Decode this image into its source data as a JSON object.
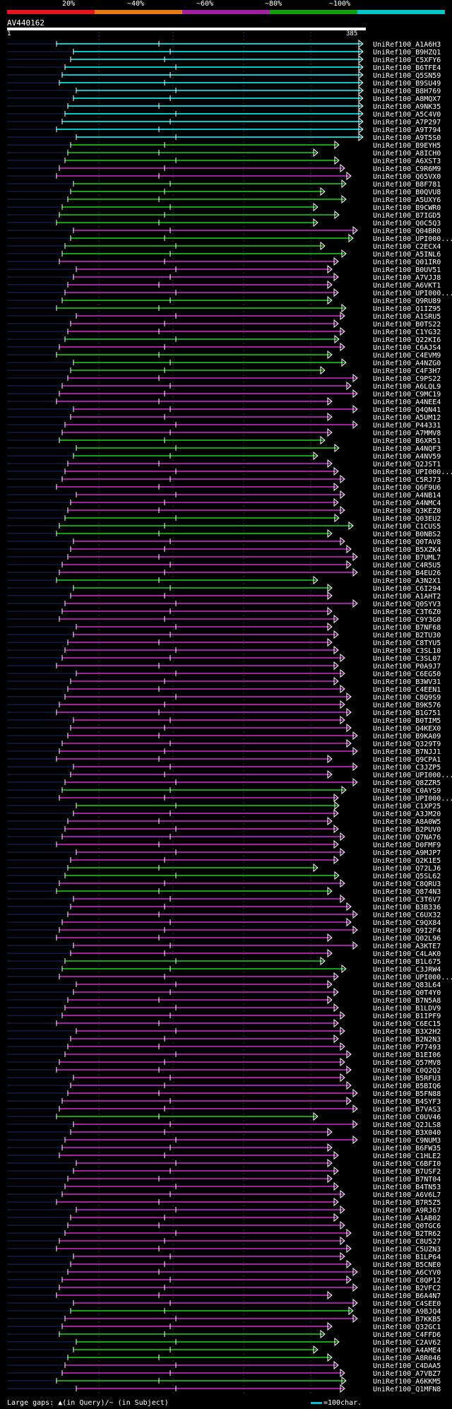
{
  "header": {
    "scale_labels": [
      "20%",
      "~40%",
      "~60%",
      "~80%",
      "~100%"
    ],
    "colors": [
      "#e8141e",
      "#e87a14",
      "#a020a0",
      "#10a010",
      "#00c8c8"
    ],
    "query_id": "AV440162",
    "query_start": "1",
    "query_end": "385"
  },
  "footer": {
    "legend_text": "Large gaps: ▲(in Query)/~ (in Subject)",
    "scale_text": "=100char."
  },
  "chart_data": {
    "type": "alignment-map",
    "query_length": 385,
    "hits": [
      {
        "id": "UniRef100_A1A6H3",
        "color": "#00c8c8"
      },
      {
        "id": "UniRef100_B9HZQ1",
        "color": "#00c8c8"
      },
      {
        "id": "UniRef100_C5XFY6",
        "color": "#00c8c8"
      },
      {
        "id": "UniRef100_B6TFE4",
        "color": "#00c8c8"
      },
      {
        "id": "UniRef100_Q5SN59",
        "color": "#00c8c8"
      },
      {
        "id": "UniRef100_B9SU49",
        "color": "#00c8c8"
      },
      {
        "id": "UniRef100_B8H769",
        "color": "#00c8c8"
      },
      {
        "id": "UniRef100_A8MQX7",
        "color": "#00c8c8"
      },
      {
        "id": "UniRef100_A9NK35",
        "color": "#00c8c8"
      },
      {
        "id": "UniRef100_A5C4V0",
        "color": "#00c8c8"
      },
      {
        "id": "UniRef100_A7P297",
        "color": "#00c8c8"
      },
      {
        "id": "UniRef100_A9T794",
        "color": "#00c8c8"
      },
      {
        "id": "UniRef100_A9T5S0",
        "color": "#00c8c8"
      },
      {
        "id": "UniRef100_B9EYH5",
        "color": "#10a010"
      },
      {
        "id": "UniRef100_A8ICH0",
        "color": "#10a010"
      },
      {
        "id": "UniRef100_A6XST3",
        "color": "#10a010"
      },
      {
        "id": "UniRef100_C9R6M9",
        "color": "#a020a0"
      },
      {
        "id": "UniRef100_Q65VX0",
        "color": "#a020a0"
      },
      {
        "id": "UniRef100_B8F781",
        "color": "#10a010"
      },
      {
        "id": "UniRef100_B0QVU8",
        "color": "#10a010"
      },
      {
        "id": "UniRef100_A5UXY6",
        "color": "#10a010"
      },
      {
        "id": "UniRef100_B9CWR0",
        "color": "#10a010"
      },
      {
        "id": "UniRef100_B7IGD5",
        "color": "#10a010"
      },
      {
        "id": "UniRef100_Q0C5Q3",
        "color": "#10a010"
      },
      {
        "id": "UniRef100_Q04BR0",
        "color": "#a020a0"
      },
      {
        "id": "UniRef100_UPI000...",
        "color": "#10a010"
      },
      {
        "id": "UniRef100_C2ECX4",
        "color": "#10a010"
      },
      {
        "id": "UniRef100_A5INL6",
        "color": "#10a010"
      },
      {
        "id": "UniRef100_Q01IR0",
        "color": "#a020a0"
      },
      {
        "id": "UniRef100_B0UV51",
        "color": "#a020a0"
      },
      {
        "id": "UniRef100_A7VJJ8",
        "color": "#a020a0"
      },
      {
        "id": "UniRef100_A6VKT1",
        "color": "#a020a0"
      },
      {
        "id": "UniRef100_UPI000...",
        "color": "#a020a0"
      },
      {
        "id": "UniRef100_Q9RU89",
        "color": "#10a010"
      },
      {
        "id": "UniRef100_Q1IZ95",
        "color": "#10a010"
      },
      {
        "id": "UniRef100_A1SRU5",
        "color": "#a020a0"
      },
      {
        "id": "UniRef100_B0TS22",
        "color": "#a020a0"
      },
      {
        "id": "UniRef100_C1YG32",
        "color": "#a020a0"
      },
      {
        "id": "UniRef100_Q22KI6",
        "color": "#10a010"
      },
      {
        "id": "UniRef100_C6AJS4",
        "color": "#a020a0"
      },
      {
        "id": "UniRef100_C4EVM9",
        "color": "#10a010"
      },
      {
        "id": "UniRef100_A4NZG0",
        "color": "#10a010"
      },
      {
        "id": "UniRef100_C4F3H7",
        "color": "#10a010"
      },
      {
        "id": "UniRef100_C9PS22",
        "color": "#a020a0"
      },
      {
        "id": "UniRef100_A6LQL9",
        "color": "#a020a0"
      },
      {
        "id": "UniRef100_C9MC19",
        "color": "#a020a0"
      },
      {
        "id": "UniRef100_A4NEE4",
        "color": "#a020a0"
      },
      {
        "id": "UniRef100_Q4QN41",
        "color": "#a020a0"
      },
      {
        "id": "UniRef100_A5UM12",
        "color": "#a020a0"
      },
      {
        "id": "UniRef100_P44331",
        "color": "#a020a0"
      },
      {
        "id": "UniRef100_A7MMV8",
        "color": "#a020a0"
      },
      {
        "id": "UniRef100_B6XR51",
        "color": "#10a010"
      },
      {
        "id": "UniRef100_A4NQF3",
        "color": "#10a010"
      },
      {
        "id": "UniRef100_A4NV59",
        "color": "#10a010"
      },
      {
        "id": "UniRef100_Q2JST1",
        "color": "#a020a0"
      },
      {
        "id": "UniRef100_UPI000...",
        "color": "#a020a0"
      },
      {
        "id": "UniRef100_C5RJ73",
        "color": "#a020a0"
      },
      {
        "id": "UniRef100_Q6F9U6",
        "color": "#a020a0"
      },
      {
        "id": "UniRef100_A4NB14",
        "color": "#a020a0"
      },
      {
        "id": "UniRef100_A4NMC4",
        "color": "#a020a0"
      },
      {
        "id": "UniRef100_Q3KEZ0",
        "color": "#a020a0"
      },
      {
        "id": "UniRef100_Q03EU2",
        "color": "#10a010"
      },
      {
        "id": "UniRef100_C1CUS5",
        "color": "#10a010"
      },
      {
        "id": "UniRef100_B0NBS2",
        "color": "#10a010"
      },
      {
        "id": "UniRef100_Q0TAV8",
        "color": "#a020a0"
      },
      {
        "id": "UniRef100_B5XZK4",
        "color": "#a020a0"
      },
      {
        "id": "UniRef100_B7UML7",
        "color": "#a020a0"
      },
      {
        "id": "UniRef100_C4R5U5",
        "color": "#a020a0"
      },
      {
        "id": "UniRef100_B4EU26",
        "color": "#a020a0"
      },
      {
        "id": "UniRef100_A3N2X1",
        "color": "#10a010"
      },
      {
        "id": "UniRef100_C6I294",
        "color": "#10a010"
      },
      {
        "id": "UniRef100_A1AHT2",
        "color": "#a020a0"
      },
      {
        "id": "UniRef100_Q0SYV3",
        "color": "#a020a0"
      },
      {
        "id": "UniRef100_C3T6Z0",
        "color": "#a020a0"
      },
      {
        "id": "UniRef100_C9Y3G0",
        "color": "#a020a0"
      },
      {
        "id": "UniRef100_B7NF68",
        "color": "#a020a0"
      },
      {
        "id": "UniRef100_B2TU30",
        "color": "#a020a0"
      },
      {
        "id": "UniRef100_C8TYU5",
        "color": "#a020a0"
      },
      {
        "id": "UniRef100_C3SL10",
        "color": "#a020a0"
      },
      {
        "id": "UniRef100_C3SL07",
        "color": "#a020a0"
      },
      {
        "id": "UniRef100_P0A9J7",
        "color": "#a020a0"
      },
      {
        "id": "UniRef100_C6EG50",
        "color": "#a020a0"
      },
      {
        "id": "UniRef100_B3WV31",
        "color": "#a020a0"
      },
      {
        "id": "UniRef100_C4EEN1",
        "color": "#a020a0"
      },
      {
        "id": "UniRef100_C8Q9S9",
        "color": "#a020a0"
      },
      {
        "id": "UniRef100_B9K576",
        "color": "#a020a0"
      },
      {
        "id": "UniRef100_B1G751",
        "color": "#a020a0"
      },
      {
        "id": "UniRef100_B0TIM5",
        "color": "#a020a0"
      },
      {
        "id": "UniRef100_Q4KEX0",
        "color": "#a020a0"
      },
      {
        "id": "UniRef100_B9KA09",
        "color": "#a020a0"
      },
      {
        "id": "UniRef100_Q329T9",
        "color": "#a020a0"
      },
      {
        "id": "UniRef100_B7NJJ1",
        "color": "#a020a0"
      },
      {
        "id": "UniRef100_Q9CPA1",
        "color": "#a020a0"
      },
      {
        "id": "UniRef100_C3JZP5",
        "color": "#a020a0"
      },
      {
        "id": "UniRef100_UPI000...",
        "color": "#a020a0"
      },
      {
        "id": "UniRef100_Q8ZZR5",
        "color": "#a020a0"
      },
      {
        "id": "UniRef100_C0AYS9",
        "color": "#10a010"
      },
      {
        "id": "UniRef100_UPI000...",
        "color": "#a020a0"
      },
      {
        "id": "UniRef100_C1XP25",
        "color": "#10a010"
      },
      {
        "id": "UniRef100_A3JM20",
        "color": "#a020a0"
      },
      {
        "id": "UniRef100_A8A0W5",
        "color": "#a020a0"
      },
      {
        "id": "UniRef100_B2PUV0",
        "color": "#a020a0"
      },
      {
        "id": "UniRef100_Q7NA76",
        "color": "#a020a0"
      },
      {
        "id": "UniRef100_D0FMF9",
        "color": "#a020a0"
      },
      {
        "id": "UniRef100_A9MJP7",
        "color": "#a020a0"
      },
      {
        "id": "UniRef100_Q2K1E5",
        "color": "#a020a0"
      },
      {
        "id": "UniRef100_Q72LJ6",
        "color": "#10a010"
      },
      {
        "id": "UniRef100_Q5SL62",
        "color": "#10a010"
      },
      {
        "id": "UniRef100_C8QRU3",
        "color": "#a020a0"
      },
      {
        "id": "UniRef100_Q874N3",
        "color": "#10a010"
      },
      {
        "id": "UniRef100_C3T6V7",
        "color": "#a020a0"
      },
      {
        "id": "UniRef100_B3B336",
        "color": "#a020a0"
      },
      {
        "id": "UniRef100_C6UX32",
        "color": "#a020a0"
      },
      {
        "id": "UniRef100_C9QX84",
        "color": "#a020a0"
      },
      {
        "id": "UniRef100_Q9I2F4",
        "color": "#a020a0"
      },
      {
        "id": "UniRef100_Q02L96",
        "color": "#a020a0"
      },
      {
        "id": "UniRef100_A3KTE7",
        "color": "#a020a0"
      },
      {
        "id": "UniRef100_C4LAK0",
        "color": "#a020a0"
      },
      {
        "id": "UniRef100_B1L675",
        "color": "#10a010"
      },
      {
        "id": "UniRef100_C3JRW4",
        "color": "#10a010"
      },
      {
        "id": "UniRef100_UPI000...",
        "color": "#a020a0"
      },
      {
        "id": "UniRef100_Q83L64",
        "color": "#a020a0"
      },
      {
        "id": "UniRef100_Q0T4Y0",
        "color": "#a020a0"
      },
      {
        "id": "UniRef100_B7N5A8",
        "color": "#a020a0"
      },
      {
        "id": "UniRef100_B1LDV9",
        "color": "#a020a0"
      },
      {
        "id": "UniRef100_B1IPF9",
        "color": "#a020a0"
      },
      {
        "id": "UniRef100_C6EC15",
        "color": "#a020a0"
      },
      {
        "id": "UniRef100_B3X2H2",
        "color": "#a020a0"
      },
      {
        "id": "UniRef100_B2N2N3",
        "color": "#a020a0"
      },
      {
        "id": "UniRef100_P77493",
        "color": "#a020a0"
      },
      {
        "id": "UniRef100_B1EI06",
        "color": "#a020a0"
      },
      {
        "id": "UniRef100_Q57MV8",
        "color": "#a020a0"
      },
      {
        "id": "UniRef100_C0Q2Q2",
        "color": "#a020a0"
      },
      {
        "id": "UniRef100_B5RFU3",
        "color": "#a020a0"
      },
      {
        "id": "UniRef100_B5BIQ6",
        "color": "#a020a0"
      },
      {
        "id": "UniRef100_B5FN88",
        "color": "#a020a0"
      },
      {
        "id": "UniRef100_B4SYF3",
        "color": "#a020a0"
      },
      {
        "id": "UniRef100_B7VAS3",
        "color": "#a020a0"
      },
      {
        "id": "UniRef100_C0UV46",
        "color": "#10a010"
      },
      {
        "id": "UniRef100_Q2JLS8",
        "color": "#a020a0"
      },
      {
        "id": "UniRef100_B3X040",
        "color": "#a020a0"
      },
      {
        "id": "UniRef100_C9NUM3",
        "color": "#a020a0"
      },
      {
        "id": "UniRef100_B6FW35",
        "color": "#a020a0"
      },
      {
        "id": "UniRef100_C1HLE2",
        "color": "#a020a0"
      },
      {
        "id": "UniRef100_C6BFI0",
        "color": "#a020a0"
      },
      {
        "id": "UniRef100_B7USF2",
        "color": "#a020a0"
      },
      {
        "id": "UniRef100_B7NT04",
        "color": "#a020a0"
      },
      {
        "id": "UniRef100_B4TN53",
        "color": "#a020a0"
      },
      {
        "id": "UniRef100_A6V6L7",
        "color": "#a020a0"
      },
      {
        "id": "UniRef100_B7R5Z5",
        "color": "#a020a0"
      },
      {
        "id": "UniRef100_A9RJ67",
        "color": "#a020a0"
      },
      {
        "id": "UniRef100_A1AB02",
        "color": "#a020a0"
      },
      {
        "id": "UniRef100_Q0TGC6",
        "color": "#a020a0"
      },
      {
        "id": "UniRef100_B2TR62",
        "color": "#a020a0"
      },
      {
        "id": "UniRef100_C8U527",
        "color": "#a020a0"
      },
      {
        "id": "UniRef100_C5UZN3",
        "color": "#a020a0"
      },
      {
        "id": "UniRef100_B1LP64",
        "color": "#a020a0"
      },
      {
        "id": "UniRef100_B5CNE0",
        "color": "#a020a0"
      },
      {
        "id": "UniRef100_A6CYV0",
        "color": "#a020a0"
      },
      {
        "id": "UniRef100_C8QP12",
        "color": "#a020a0"
      },
      {
        "id": "UniRef100_B2VFC2",
        "color": "#a020a0"
      },
      {
        "id": "UniRef100_B6A4N7",
        "color": "#a020a0"
      },
      {
        "id": "UniRef100_C4SEE0",
        "color": "#a020a0"
      },
      {
        "id": "UniRef100_A9BJQ4",
        "color": "#10a010"
      },
      {
        "id": "UniRef100_B7KKB5",
        "color": "#a020a0"
      },
      {
        "id": "UniRef100_Q32GC1",
        "color": "#a020a0"
      },
      {
        "id": "UniRef100_C4FFD6",
        "color": "#10a010"
      },
      {
        "id": "UniRef100_C2AV62",
        "color": "#10a010"
      },
      {
        "id": "UniRef100_A4AME4",
        "color": "#10a010"
      },
      {
        "id": "UniRef100_A8R046",
        "color": "#10a010"
      },
      {
        "id": "UniRef100_C4DAA5",
        "color": "#a020a0"
      },
      {
        "id": "UniRef100_A7VBZ7",
        "color": "#a020a0"
      },
      {
        "id": "UniRef100_A6KKM5",
        "color": "#10a010"
      },
      {
        "id": "UniRef100_Q1MFN8",
        "color": "#a020a0"
      }
    ]
  }
}
